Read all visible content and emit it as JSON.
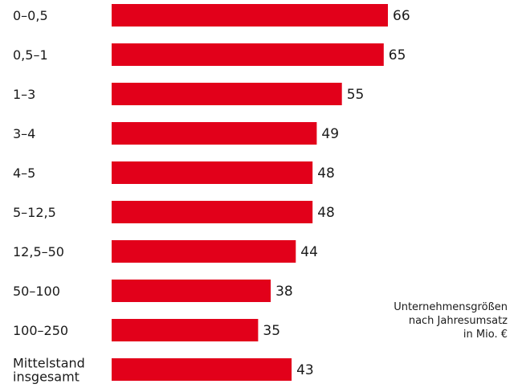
{
  "chart_data": {
    "type": "bar",
    "orientation": "horizontal",
    "categories": [
      "0–0,5",
      "0,5–1",
      "1–3",
      "3–4",
      "4–5",
      "5–12,5",
      "12,5–50",
      "50–100",
      "100–250",
      "Mittelstand insgesamt"
    ],
    "category_lines": [
      [
        "0–0,5"
      ],
      [
        "0,5–1"
      ],
      [
        "1–3"
      ],
      [
        "3–4"
      ],
      [
        "4–5"
      ],
      [
        "5–12,5"
      ],
      [
        "12,5–50"
      ],
      [
        "50–100"
      ],
      [
        "100–250"
      ],
      [
        "Mittelstand",
        "insgesamt"
      ]
    ],
    "values": [
      66,
      65,
      55,
      49,
      48,
      48,
      44,
      38,
      35,
      43
    ],
    "xlim": [
      0,
      66
    ],
    "grid": false,
    "bar_color": "#e2001a",
    "annotation": "Unternehmensgrößen\nnach Jahresumsatz\nin Mio. €"
  }
}
